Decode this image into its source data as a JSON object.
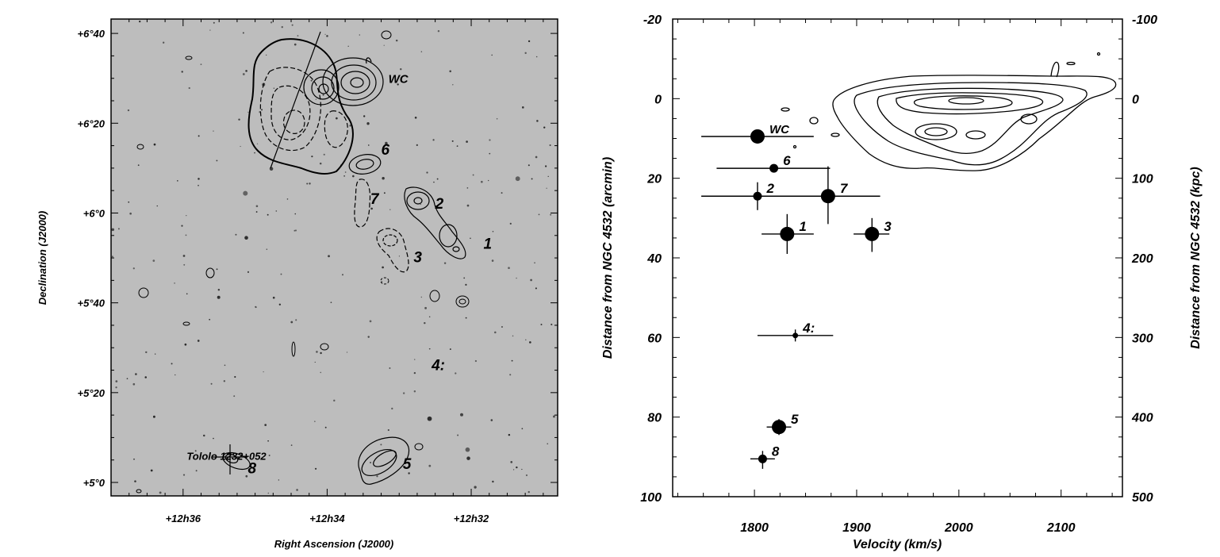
{
  "chart_data": [
    {
      "type": "scatter",
      "xlabel": "Right Ascension (J2000)",
      "ylabel": "Declination (J2000)",
      "x_ticks": [
        "+12h36",
        "+12h34",
        "+12h32"
      ],
      "x_tick_hours": [
        36,
        34,
        32
      ],
      "y_ticks": [
        "+6°40",
        "+6°20",
        "+6°0",
        "+5°40",
        "+5°20",
        "+5°0"
      ],
      "y_tick_values": [
        6.6667,
        6.3333,
        6.0,
        5.6667,
        5.3333,
        5.0
      ],
      "xlim_min": [
        37.0,
        30.8
      ],
      "ylim_deg": [
        4.95,
        6.72
      ],
      "labels": [
        {
          "text": "WC",
          "x": 33.15,
          "y": 6.4833
        },
        {
          "text": "6",
          "x": 33.25,
          "y": 6.2167
        },
        {
          "text": "7",
          "x": 33.4,
          "y": 6.0333
        },
        {
          "text": "2",
          "x": 32.5,
          "y": 6.0167
        },
        {
          "text": "1",
          "x": 31.83,
          "y": 5.8667
        },
        {
          "text": "3",
          "x": 32.8,
          "y": 5.8167
        },
        {
          "text": "4:",
          "x": 32.55,
          "y": 5.4167
        },
        {
          "text": "5",
          "x": 32.95,
          "y": 5.05
        },
        {
          "text": "8",
          "x": 35.1,
          "y": 5.0333
        },
        {
          "text": "Tololo 1232+052",
          "x": 35.95,
          "y": 5.0833
        }
      ]
    },
    {
      "type": "scatter",
      "xlabel": "Velocity (km/s)",
      "ylabel": "Distance from NGC 4532 (arcmin)",
      "y2label": "Distance from NGC 4532 (kpc)",
      "xlim": [
        1720,
        2160
      ],
      "ylim": [
        -20,
        100
      ],
      "x_ticks": [
        "1800",
        "1900",
        "2000",
        "2100"
      ],
      "y_ticks": [
        "-20",
        "0",
        "20",
        "40",
        "60",
        "80",
        "100"
      ],
      "y2_ticks": [
        "-100",
        "0",
        "100",
        "200",
        "300",
        "400",
        "500"
      ],
      "points": [
        {
          "label": "WC",
          "velocity": 1803,
          "distance": 9.5,
          "vel_err": [
            1748,
            1858
          ],
          "size": "large"
        },
        {
          "label": "6",
          "velocity": 1819,
          "distance": 17.5,
          "vel_err": [
            1763,
            1874
          ],
          "dist_err": [
            17,
            18
          ],
          "size": "small"
        },
        {
          "label": "2",
          "velocity": 1803,
          "distance": 24.5,
          "vel_err": [
            1748,
            1872
          ],
          "dist_err": [
            21,
            28
          ],
          "size": "small"
        },
        {
          "label": "7",
          "velocity": 1872,
          "distance": 24.5,
          "vel_err": [
            1822,
            1923
          ],
          "dist_err": [
            17,
            31.5
          ],
          "size": "large"
        },
        {
          "label": "1",
          "velocity": 1832,
          "distance": 34,
          "vel_err": [
            1807,
            1858
          ],
          "dist_err": [
            29,
            39
          ],
          "size": "large"
        },
        {
          "label": "3",
          "velocity": 1915,
          "distance": 34,
          "vel_err": [
            1897,
            1932
          ],
          "dist_err": [
            30,
            38.5
          ],
          "size": "large"
        },
        {
          "label": "4:",
          "velocity": 1840,
          "distance": 59.5,
          "vel_err": [
            1803,
            1877
          ],
          "dist_err": [
            58,
            61
          ],
          "size": "tiny"
        },
        {
          "label": "5",
          "velocity": 1824,
          "distance": 82.5,
          "vel_err": [
            1812,
            1836
          ],
          "dist_err": [
            80.5,
            84.5
          ],
          "size": "large"
        },
        {
          "label": "8",
          "velocity": 1808,
          "distance": 90.5,
          "vel_err": [
            1796,
            1820
          ],
          "dist_err": [
            88.5,
            93
          ],
          "size": "small"
        }
      ]
    }
  ]
}
